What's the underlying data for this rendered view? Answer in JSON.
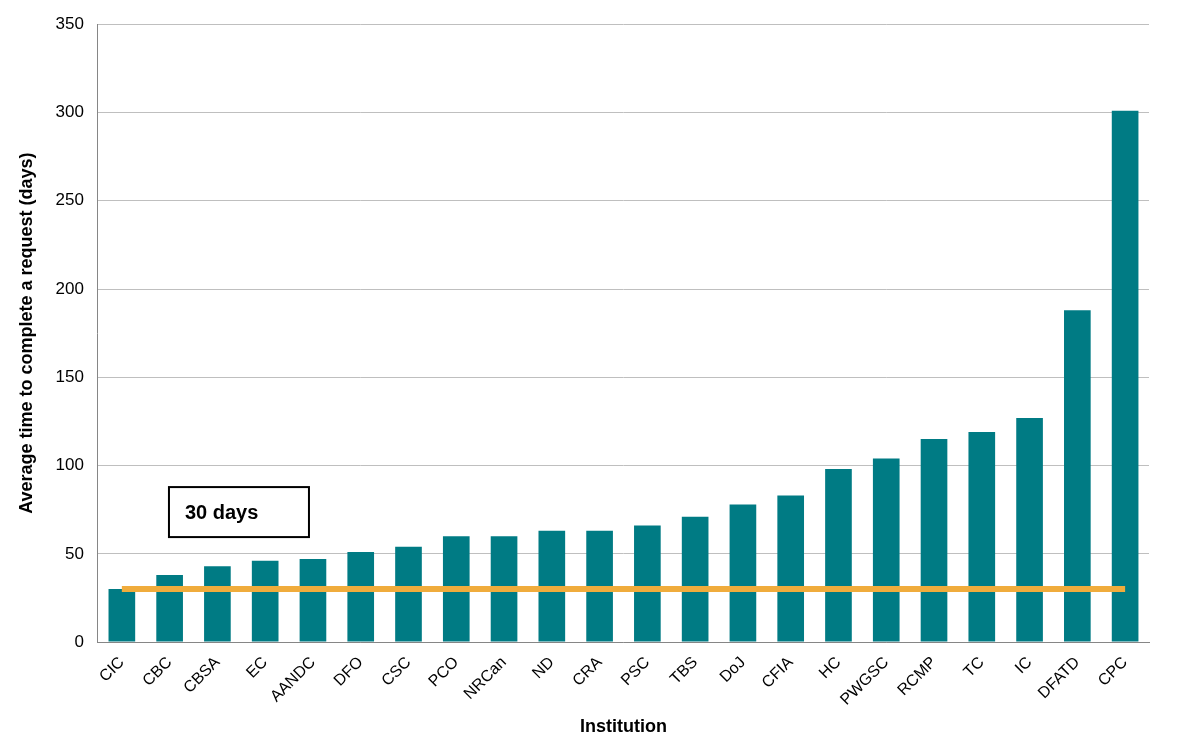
{
  "chart_data": {
    "type": "bar",
    "x_label": "Institution",
    "y_label": "Average time to complete a request (days)",
    "categories": [
      "CIC",
      "CBC",
      "CBSA",
      "EC",
      "AANDC",
      "DFO",
      "CSC",
      "PCO",
      "NRCan",
      "ND",
      "CRA",
      "PSC",
      "TBS",
      "DoJ",
      "CFIA",
      "HC",
      "PWGSC",
      "RCMP",
      "TC",
      "IC",
      "DFATD",
      "CPC"
    ],
    "values": [
      30,
      38,
      43,
      46,
      47,
      51,
      54,
      60,
      60,
      63,
      63,
      66,
      71,
      78,
      83,
      98,
      104,
      115,
      119,
      127,
      188,
      301
    ],
    "color": "#007b84",
    "reference_line": {
      "value": 30,
      "label": "30 days",
      "color": "#f0ac3c"
    },
    "ylim": [
      0,
      350
    ],
    "yticks": [
      0,
      50,
      100,
      150,
      200,
      250,
      300,
      350
    ],
    "grid": true
  }
}
